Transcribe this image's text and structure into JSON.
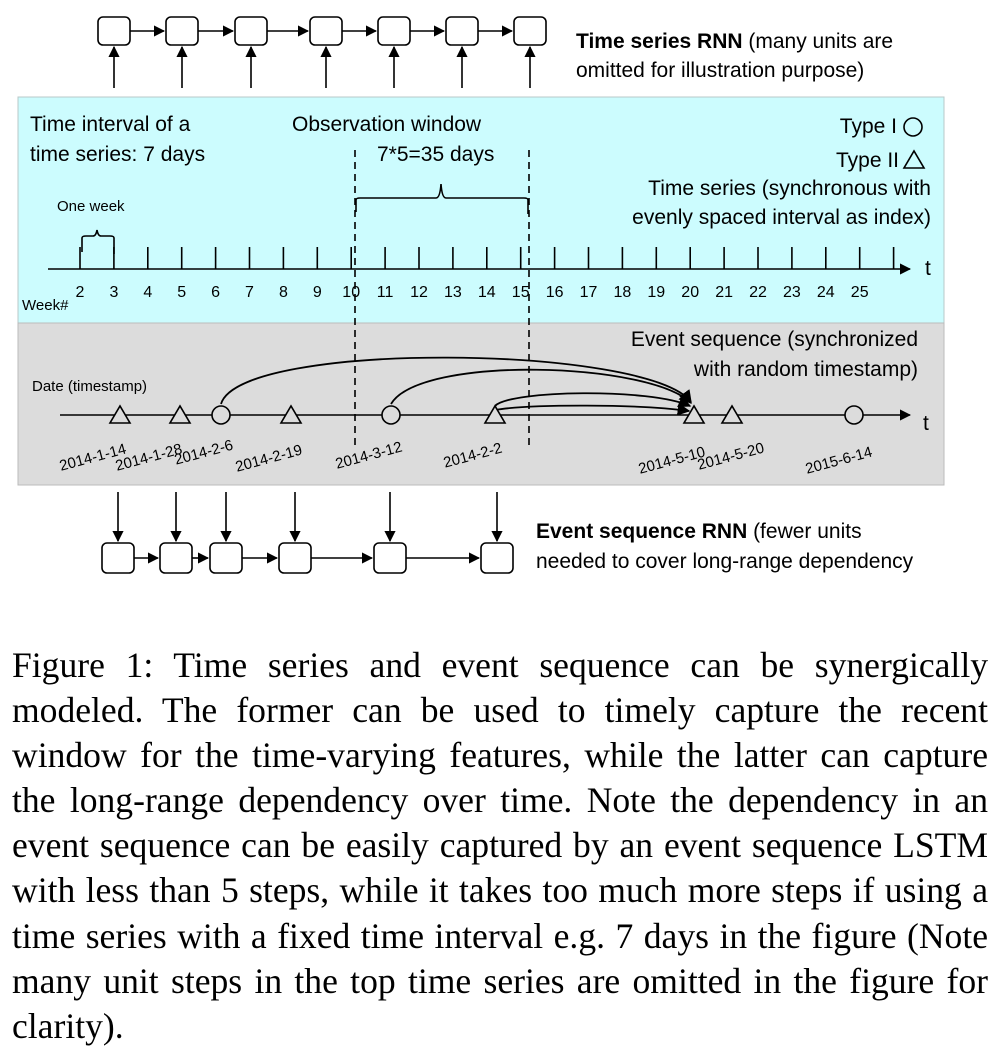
{
  "top_rnn": {
    "title": "Time series RNN",
    "note_line1": " (many units are",
    "note_line2": "omitted for illustration purpose)"
  },
  "time_series_panel": {
    "interval_line1": "Time interval of a",
    "interval_line2": "time series: 7 days",
    "window_line1": "Observation window",
    "window_line2": "7*5=35 days",
    "type1": "Type I",
    "type2": "Type II",
    "ts_line1": "Time series (synchronous with",
    "ts_line2": "evenly spaced interval as index)",
    "one_week": "One week",
    "axis_t": "t",
    "week_label": "Week#",
    "weeks": [
      "2",
      "3",
      "4",
      "5",
      "6",
      "7",
      "8",
      "9",
      "10",
      "11",
      "12",
      "13",
      "14",
      "15",
      "16",
      "17",
      "18",
      "19",
      "20",
      "21",
      "22",
      "23",
      "24",
      "25"
    ]
  },
  "event_panel": {
    "es_line1": "Event sequence (synchronized",
    "es_line2": "with random timestamp)",
    "date_label": "Date (timestamp)",
    "axis_t": "t",
    "events": [
      {
        "date": "2014-1-14",
        "type": "triangle"
      },
      {
        "date": "2014-1-28",
        "type": "triangle"
      },
      {
        "date": "2014-2-6",
        "type": "circle"
      },
      {
        "date": "2014-2-19",
        "type": "triangle"
      },
      {
        "date": "2014-3-12",
        "type": "circle"
      },
      {
        "date": "2014-2-2",
        "type": "triangle"
      },
      {
        "date": "2014-5-10",
        "type": "triangle"
      },
      {
        "date": "2014-5-20",
        "type": "triangle"
      },
      {
        "date": "2015-6-14",
        "type": "circle"
      }
    ]
  },
  "bottom_rnn": {
    "title": "Event sequence RNN",
    "note_line1": " (fewer units",
    "note_line2": "needed to cover long-range dependency"
  },
  "caption": "Figure 1: Time series and event sequence can be synergically modeled. The former can be used to timely capture the recent window for the time-varying features, while the latter can capture the long-range dependency over time. Note the dependency in an event sequence can be easily captured by an event sequence LSTM with less than 5 steps, while it takes too much more steps if using a time series with a fixed time interval e.g. 7 days in the figure (Note many unit steps in the top time series are omitted in the figure for clarity)."
}
